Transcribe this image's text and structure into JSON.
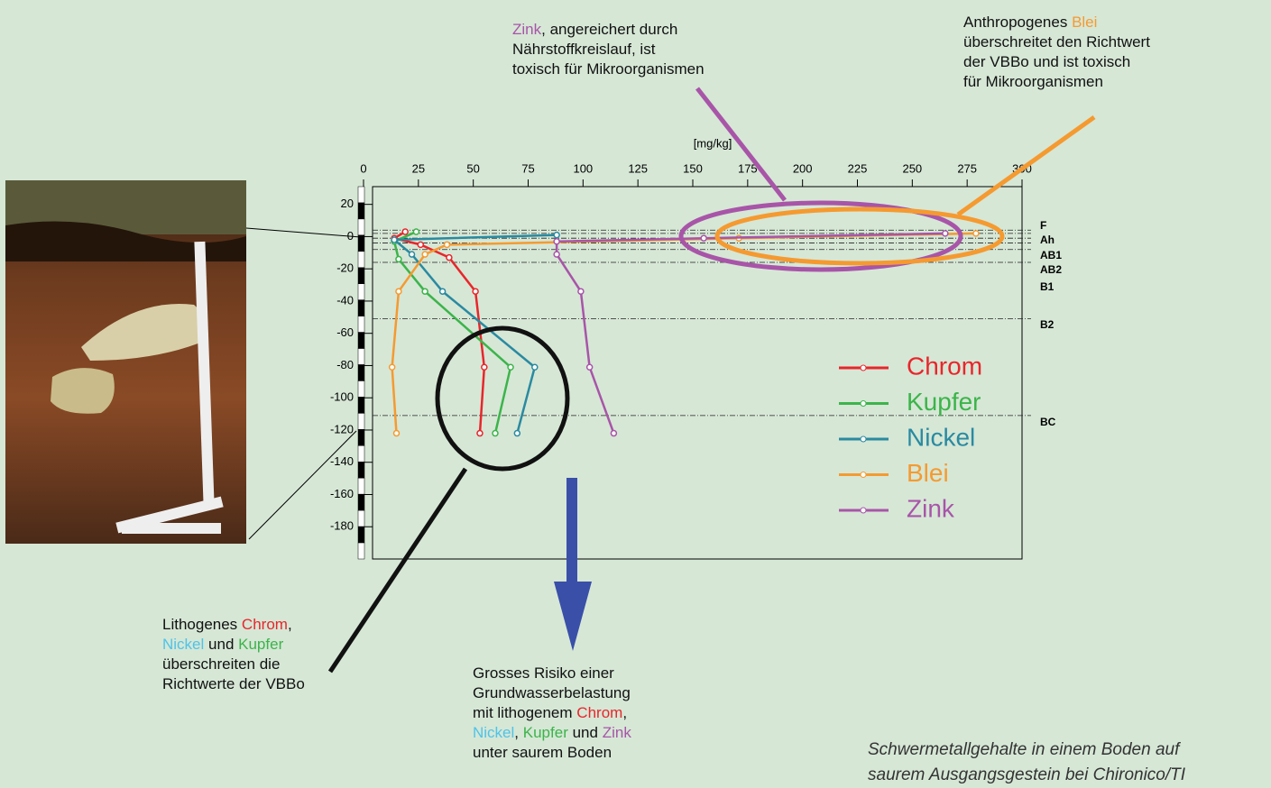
{
  "chart_data": {
    "type": "line",
    "x_label": "[mg/kg]",
    "xlim": [
      0,
      300
    ],
    "xticks": [
      0,
      25,
      50,
      75,
      100,
      125,
      150,
      175,
      200,
      225,
      250,
      275,
      300
    ],
    "ylim": [
      -200,
      31
    ],
    "yticks": [
      20,
      0,
      -20,
      -40,
      -60,
      -80,
      -100,
      -120,
      -140,
      -160,
      -180
    ],
    "horizon_lines": [
      4,
      2,
      -1,
      -4,
      -8,
      -16,
      -51,
      -111
    ],
    "horizons": [
      "F",
      "Ah",
      "AB1",
      "AB2",
      "B1",
      "B2",
      "BC"
    ],
    "series": [
      {
        "name": "Chrom",
        "color": "#e8262b",
        "x": [
          19,
          14,
          26,
          39,
          51,
          55,
          53
        ],
        "values": [
          3,
          -1,
          -5,
          -13,
          -34,
          -81,
          -122
        ]
      },
      {
        "name": "Kupfer",
        "color": "#3cb44a",
        "x": [
          24,
          14,
          16,
          28,
          67,
          60
        ],
        "values": [
          3,
          -3,
          -14,
          -34,
          -81,
          -122
        ]
      },
      {
        "name": "Nickel",
        "color": "#2a8aa0",
        "x": [
          88,
          14,
          22,
          36,
          78,
          70
        ],
        "values": [
          1,
          -2,
          -11,
          -34,
          -81,
          -122
        ]
      },
      {
        "name": "Blei",
        "color": "#f59a30",
        "x": [
          279,
          171,
          38,
          28,
          16,
          13,
          15
        ],
        "values": [
          2,
          -1,
          -5,
          -11,
          -34,
          -81,
          -122
        ]
      },
      {
        "name": "Zink",
        "color": "#a855a8",
        "x": [
          265,
          155,
          88,
          88,
          99,
          103,
          114
        ],
        "values": [
          2,
          -1,
          -3,
          -11,
          -34,
          -81,
          -122
        ]
      }
    ]
  },
  "annotations": {
    "zink": {
      "l1a": "Zink",
      "l1b": ", angereichert durch",
      "l2": "Nährstoffkreislauf, ist",
      "l3": "toxisch für Mikroorganismen"
    },
    "blei": {
      "l1a": "Anthropogenes",
      "l1b": "Blei",
      "l2": "überschreitet den Richtwert",
      "l3": "der VBBo und ist toxisch",
      "l4": "für Mikroorganismen"
    },
    "lithogen": {
      "l1a": "Lithogenes",
      "l1b": "Chrom",
      "l1c": ",",
      "l2a": "Nickel",
      "l2b": "und",
      "l2c": "Kupfer",
      "l3": "überschreiten die",
      "l4": "Richtwerte der VBBo"
    },
    "risiko": {
      "l1": "Grosses Risiko einer",
      "l2": "Grundwasserbelastung",
      "l3a": "mit lithogenem",
      "l3b": "Chrom",
      "l3c": ",",
      "l4a": "Nickel",
      "l4b": ",",
      "l4c": "Kupfer",
      "l4d": "und",
      "l4e": "Zink",
      "l5": "unter saurem Boden"
    }
  },
  "caption": {
    "l1": "Schwermetallgehalte in einem Boden auf",
    "l2": "saurem Ausgangsgestein bei Chironico/TI"
  }
}
